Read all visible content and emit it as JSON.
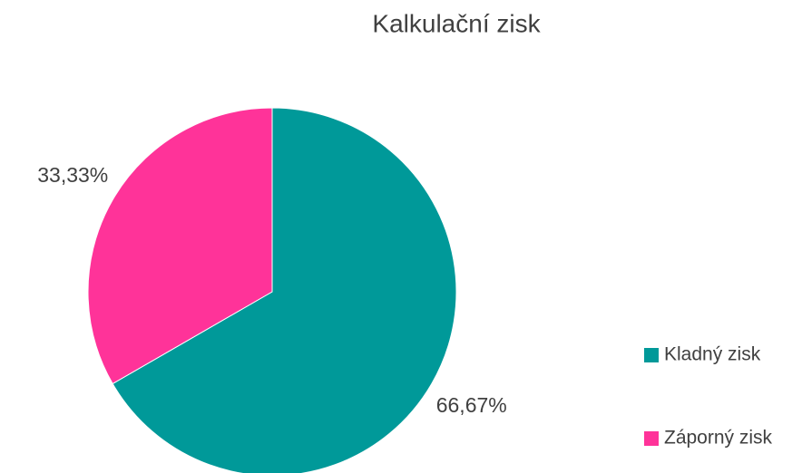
{
  "chart_data": {
    "type": "pie",
    "title": "Kalkulační zisk",
    "categories": [
      "Kladný zisk",
      "Záporný zisk"
    ],
    "values": [
      66.67,
      33.33
    ],
    "value_labels": [
      "66,67%",
      "33,33%"
    ],
    "colors": [
      "#009999",
      "#ff3399"
    ],
    "legend": "right"
  }
}
